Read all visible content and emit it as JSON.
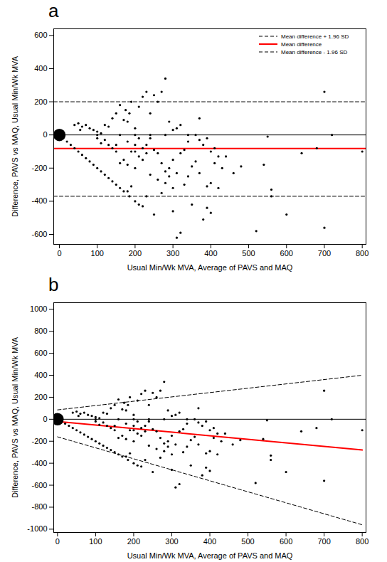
{
  "chart_data": [
    {
      "type": "scatter",
      "title": "a",
      "x_label": "Usual Min/Wk MVA, Average of PAVS and MAQ",
      "y_label": "Difference, PAVS vs MAQ, Usual Min/Wk MVA",
      "xlim": [
        -15,
        810
      ],
      "ylim": [
        -660,
        640
      ],
      "xticks": [
        0,
        100,
        200,
        300,
        400,
        500,
        600,
        700,
        800
      ],
      "yticks": [
        -600,
        -400,
        -200,
        0,
        200,
        400,
        600
      ],
      "legend": "top-right",
      "series": [
        {
          "type": "line",
          "color": "#000000",
          "line_style": "solid",
          "x": [
            -15,
            810
          ],
          "values": [
            0,
            0
          ]
        },
        {
          "name": "Mean difference + 1.96 SD",
          "type": "line",
          "color": "#000000",
          "line_style": "dashed",
          "x": [
            -15,
            810
          ],
          "values": [
            200,
            200
          ]
        },
        {
          "name": "Mean difference",
          "type": "line",
          "color": "#ff0000",
          "line_style": "solid",
          "x": [
            -15,
            810
          ],
          "values": [
            -82,
            -82
          ]
        },
        {
          "name": "Mean difference - 1.96 SD",
          "type": "line",
          "color": "#000000",
          "line_style": "dashed",
          "x": [
            -15,
            810
          ],
          "values": [
            -370,
            -370
          ]
        },
        {
          "type": "scatter",
          "color": "#000000",
          "marker": "circle",
          "x": [
            0,
            10,
            20,
            30,
            40,
            50,
            60,
            70,
            80,
            90,
            100,
            110,
            120,
            130,
            140,
            150,
            160,
            170,
            185,
            200,
            210,
            40,
            50,
            60,
            70,
            55,
            80,
            90,
            100,
            110,
            120,
            130,
            140,
            150,
            160,
            170,
            175,
            180,
            185,
            190,
            200,
            210,
            220,
            230,
            240,
            250,
            260,
            270,
            280,
            290,
            300,
            310,
            320,
            370,
            700,
            720,
            800,
            640,
            680,
            550,
            540,
            560,
            560,
            520,
            600,
            700,
            310,
            320,
            300,
            250,
            220,
            230,
            270,
            280,
            260,
            240,
            200,
            180,
            170,
            160,
            150,
            140,
            130,
            120,
            110,
            100,
            200,
            210,
            220,
            230,
            240,
            250,
            260,
            270,
            280,
            290,
            300,
            310,
            320,
            330,
            340,
            350,
            360,
            370,
            380,
            390,
            400,
            410,
            420,
            430,
            440,
            460,
            480,
            370,
            360,
            380,
            390,
            400,
            420,
            340,
            330,
            300,
            290,
            350,
            390,
            400,
            410,
            180,
            190,
            150,
            180,
            190,
            200,
            210,
            220,
            230,
            100,
            160,
            200,
            240,
            280,
            340
          ],
          "values": [
            0,
            -20,
            -40,
            -60,
            -80,
            -100,
            -120,
            -140,
            -160,
            -180,
            -200,
            -220,
            -240,
            -260,
            -280,
            -300,
            -320,
            -340,
            -370,
            -400,
            -420,
            60,
            70,
            50,
            60,
            30,
            40,
            30,
            20,
            10,
            60,
            50,
            100,
            130,
            180,
            90,
            150,
            80,
            130,
            200,
            40,
            170,
            230,
            260,
            130,
            240,
            200,
            260,
            340,
            80,
            30,
            40,
            60,
            100,
            260,
            0,
            -100,
            -110,
            -80,
            -10,
            -180,
            -330,
            -370,
            -580,
            -480,
            -560,
            -620,
            -590,
            -460,
            -480,
            -430,
            -370,
            -350,
            -290,
            -270,
            -240,
            -200,
            -180,
            -150,
            -170,
            -100,
            -80,
            -60,
            -30,
            -50,
            -20,
            -100,
            -130,
            -150,
            -60,
            -20,
            -90,
            -110,
            -170,
            -220,
            -200,
            -150,
            -230,
            -110,
            -300,
            -250,
            -190,
            -160,
            -230,
            -510,
            -310,
            -290,
            -170,
            -320,
            -200,
            -130,
            -230,
            -190,
            -30,
            0,
            -60,
            -20,
            -100,
            -130,
            -40,
            -90,
            -320,
            -250,
            -420,
            -440,
            -470,
            -80,
            -340,
            -310,
            -60,
            -40,
            -100,
            -60,
            -20,
            -80,
            -110,
            0,
            0,
            0,
            0,
            0,
            0
          ],
          "sizes": [
            30,
            1,
            1,
            1,
            1,
            1,
            1,
            1,
            1,
            1,
            1,
            1,
            1,
            1,
            1,
            1,
            1,
            1,
            1,
            1,
            1,
            1,
            1,
            1,
            1,
            1,
            1,
            1,
            1,
            1,
            1,
            1,
            1,
            1,
            1,
            1,
            1,
            1,
            1,
            1,
            1,
            1,
            1,
            1,
            1,
            1,
            1,
            1,
            1,
            1,
            1,
            1,
            1,
            1,
            1,
            1,
            1,
            1,
            1,
            1,
            1,
            1,
            1,
            1,
            1,
            1,
            1,
            1,
            1,
            1,
            1,
            1,
            1,
            1,
            1,
            1,
            1,
            1,
            1,
            1,
            1,
            1,
            1,
            1,
            1,
            1,
            1,
            1,
            1,
            1,
            1,
            1,
            1,
            1,
            1,
            1,
            1,
            1,
            1,
            1,
            1,
            1,
            1,
            1,
            1,
            1,
            1,
            1,
            1,
            1,
            1,
            1,
            1,
            1,
            1,
            1,
            1,
            1,
            1,
            1,
            1,
            1,
            1,
            1,
            1,
            1,
            1,
            1,
            1,
            1,
            1,
            1,
            1,
            1,
            1,
            1,
            1,
            1,
            1,
            1,
            1,
            1,
            1,
            1
          ]
        }
      ]
    },
    {
      "type": "scatter",
      "title": "b",
      "x_label": "Usual Min/Wk MVA, Average of PAVS and MAQ",
      "y_label": "Difference, PAVS vs MAQ, Usual Min/Wk MVA",
      "xlim": [
        -10,
        810
      ],
      "ylim": [
        -1030,
        1060
      ],
      "xticks": [
        0,
        100,
        200,
        300,
        400,
        500,
        600,
        700,
        800
      ],
      "yticks": [
        -1000,
        -800,
        -600,
        -400,
        -200,
        0,
        200,
        400,
        600,
        800,
        1000
      ],
      "series": [
        {
          "type": "line",
          "color": "#000000",
          "line_style": "solid",
          "x": [
            -10,
            810
          ],
          "values": [
            0,
            0
          ]
        },
        {
          "type": "line",
          "color": "#000000",
          "line_style": "dashed",
          "x": [
            0,
            800
          ],
          "values": [
            85,
            400
          ]
        },
        {
          "type": "line",
          "color": "#ff0000",
          "line_style": "solid",
          "x": [
            0,
            800
          ],
          "values": [
            -20,
            -280
          ]
        },
        {
          "type": "line",
          "color": "#000000",
          "line_style": "dashed",
          "x": [
            0,
            800
          ],
          "values": [
            -160,
            -960
          ]
        },
        {
          "type": "scatter",
          "color": "#000000",
          "marker": "circle",
          "x": [
            0,
            10,
            20,
            30,
            40,
            50,
            60,
            70,
            80,
            90,
            100,
            110,
            120,
            130,
            140,
            150,
            160,
            170,
            185,
            200,
            210,
            40,
            50,
            60,
            70,
            55,
            80,
            90,
            100,
            110,
            120,
            130,
            140,
            150,
            160,
            170,
            175,
            180,
            185,
            190,
            200,
            210,
            220,
            230,
            240,
            250,
            260,
            270,
            280,
            290,
            300,
            310,
            320,
            370,
            700,
            720,
            800,
            640,
            680,
            550,
            540,
            560,
            560,
            520,
            600,
            700,
            310,
            320,
            300,
            250,
            220,
            230,
            270,
            280,
            260,
            240,
            200,
            180,
            170,
            160,
            150,
            140,
            130,
            120,
            110,
            100,
            200,
            210,
            220,
            230,
            240,
            250,
            260,
            270,
            280,
            290,
            300,
            310,
            320,
            330,
            340,
            350,
            360,
            370,
            380,
            390,
            400,
            410,
            420,
            430,
            440,
            460,
            480,
            370,
            360,
            380,
            390,
            400,
            420,
            340,
            330,
            300,
            290,
            350,
            390,
            400,
            410,
            180,
            190,
            150,
            180,
            190,
            200,
            210,
            220,
            230,
            100,
            160,
            200,
            240,
            280,
            340
          ],
          "values": [
            0,
            -20,
            -40,
            -60,
            -80,
            -100,
            -120,
            -140,
            -160,
            -180,
            -200,
            -220,
            -240,
            -260,
            -280,
            -300,
            -320,
            -340,
            -370,
            -400,
            -420,
            60,
            70,
            50,
            60,
            30,
            40,
            30,
            20,
            10,
            60,
            50,
            100,
            130,
            180,
            90,
            150,
            80,
            130,
            200,
            40,
            170,
            230,
            260,
            130,
            240,
            200,
            260,
            340,
            80,
            30,
            40,
            60,
            100,
            260,
            0,
            -100,
            -110,
            -80,
            -10,
            -180,
            -330,
            -370,
            -580,
            -480,
            -560,
            -620,
            -590,
            -460,
            -480,
            -430,
            -370,
            -350,
            -290,
            -270,
            -240,
            -200,
            -180,
            -150,
            -170,
            -100,
            -80,
            -60,
            -30,
            -50,
            -20,
            -100,
            -130,
            -150,
            -60,
            -20,
            -90,
            -110,
            -170,
            -220,
            -200,
            -150,
            -230,
            -110,
            -300,
            -250,
            -190,
            -160,
            -230,
            -510,
            -310,
            -290,
            -170,
            -320,
            -200,
            -130,
            -230,
            -190,
            -30,
            0,
            -60,
            -20,
            -100,
            -130,
            -40,
            -90,
            -320,
            -250,
            -420,
            -440,
            -470,
            -80,
            -340,
            -310,
            -60,
            -40,
            -100,
            -60,
            -20,
            -80,
            -110,
            0,
            0,
            0,
            0,
            0,
            0
          ],
          "sizes": [
            30,
            1,
            1,
            1,
            1,
            1,
            1,
            1,
            1,
            1,
            1,
            1,
            1,
            1,
            1,
            1,
            1,
            1,
            1,
            1,
            1,
            1,
            1,
            1,
            1,
            1,
            1,
            1,
            1,
            1,
            1,
            1,
            1,
            1,
            1,
            1,
            1,
            1,
            1,
            1,
            1,
            1,
            1,
            1,
            1,
            1,
            1,
            1,
            1,
            1,
            1,
            1,
            1,
            1,
            1,
            1,
            1,
            1,
            1,
            1,
            1,
            1,
            1,
            1,
            1,
            1,
            1,
            1,
            1,
            1,
            1,
            1,
            1,
            1,
            1,
            1,
            1,
            1,
            1,
            1,
            1,
            1,
            1,
            1,
            1,
            1,
            1,
            1,
            1,
            1,
            1,
            1,
            1,
            1,
            1,
            1,
            1,
            1,
            1,
            1,
            1,
            1,
            1,
            1,
            1,
            1,
            1,
            1,
            1,
            1,
            1,
            1,
            1,
            1,
            1,
            1,
            1,
            1,
            1,
            1,
            1,
            1,
            1,
            1,
            1,
            1,
            1,
            1,
            1,
            1,
            1,
            1,
            1,
            1,
            1,
            1,
            1,
            1,
            1,
            1,
            1,
            1,
            1,
            1
          ]
        }
      ]
    }
  ]
}
